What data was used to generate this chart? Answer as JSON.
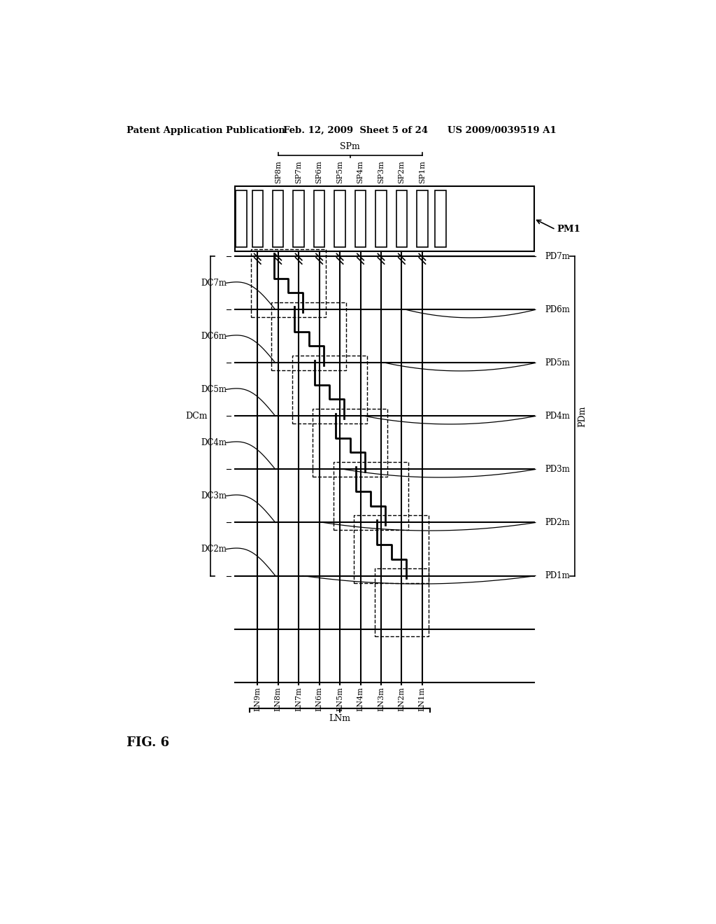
{
  "title_left": "Patent Application Publication",
  "title_center": "Feb. 12, 2009  Sheet 5 of 24",
  "title_right": "US 2009/0039519 A1",
  "fig_label": "FIG. 6",
  "background": "#ffffff",
  "text_color": "#000000",
  "sp_labels": [
    "SP8m",
    "SP7m",
    "SP6m",
    "SP5m",
    "SP4m",
    "SP3m",
    "SP2m",
    "SP1m"
  ],
  "ln_labels": [
    "LN9m",
    "LN8m",
    "LN7m",
    "LN6m",
    "LN5m",
    "LN4m",
    "LN3m",
    "LN2m",
    "LN1m"
  ],
  "dc_labels": [
    "DC7m",
    "DC6m",
    "DC5m",
    "DC4m",
    "DC3m",
    "DC2m"
  ],
  "pd_labels": [
    "PD7m",
    "PD6m",
    "PD5m",
    "PD4m",
    "PD3m",
    "PD2m",
    "PD1m"
  ],
  "spm_label": "SPm",
  "dcm_label": "DCm",
  "pdm_label": "PDm",
  "lnm_label": "LNm",
  "pm1_label": "PM1"
}
